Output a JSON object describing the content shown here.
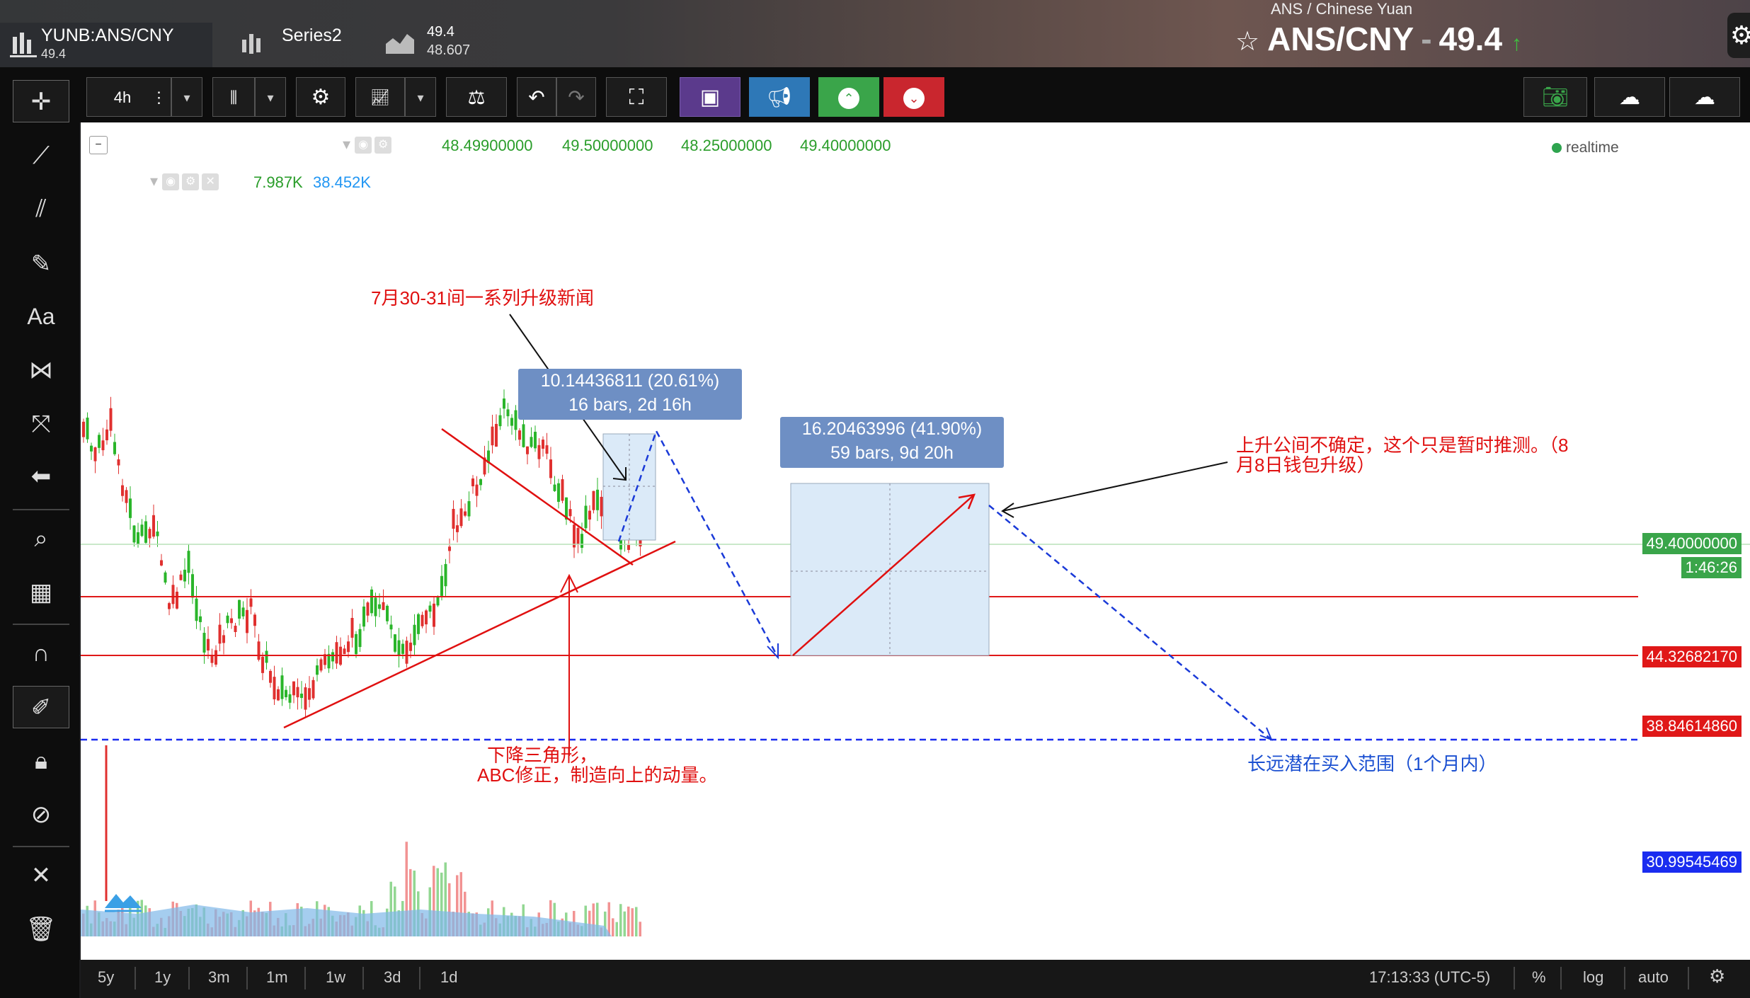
{
  "topbar": {
    "symbols": [
      {
        "name": "YUNB:ANS/CNY",
        "value": "49.4"
      },
      {
        "name": "Series2",
        "value": ""
      },
      {
        "name": "49.4",
        "value": "48.607"
      }
    ],
    "pair_label": "ANS / Chinese Yuan",
    "pair_title": "ANS/CNY",
    "pair_price": "49.4"
  },
  "toolbar": {
    "interval": "4h"
  },
  "legend": {
    "ohlc": [
      "48.49900000",
      "49.50000000",
      "48.25000000",
      "49.40000000"
    ],
    "volume": [
      "7.987K",
      "38.452K"
    ],
    "realtime": "realtime"
  },
  "price_labels": [
    {
      "text": "49.40000000",
      "color": "#3aa54a"
    },
    {
      "text": "1:46:26",
      "color": "#3aa54a"
    },
    {
      "text": "44.32682170",
      "color": "#e01818"
    },
    {
      "text": "38.84614860",
      "color": "#e01818"
    },
    {
      "text": "30.99545469",
      "color": "#1a2cf0"
    }
  ],
  "annotations": {
    "news": "7月30-31间一系列升级新闻",
    "measure1": {
      "line1": "10.14436811 (20.61%)",
      "line2": "16 bars, 2d 16h"
    },
    "measure2": {
      "line1": "16.20463996 (41.90%)",
      "line2": "59 bars, 9d 20h"
    },
    "uncertain": {
      "line1": "上升公间不确定，这个只是暂时推测。（8",
      "line2": "月8日钱包升级）"
    },
    "triangle": {
      "line1": "下降三角形，",
      "line2": "ABC修正，制造向上的动量。"
    },
    "buy_range": "长远潜在买入范围（1个月内）"
  },
  "bottombar": {
    "ranges": [
      "5y",
      "1y",
      "3m",
      "1m",
      "1w",
      "3d",
      "1d"
    ],
    "time": "17:13:33 (UTC-5)",
    "percent": "%",
    "log": "log",
    "auto": "auto"
  },
  "colors": {
    "up": "#2ab52a",
    "down": "#e0302f",
    "annotation_red": "#e01010",
    "annotation_blue": "#1a4fd1",
    "measure_box": "#6e8fc4"
  }
}
